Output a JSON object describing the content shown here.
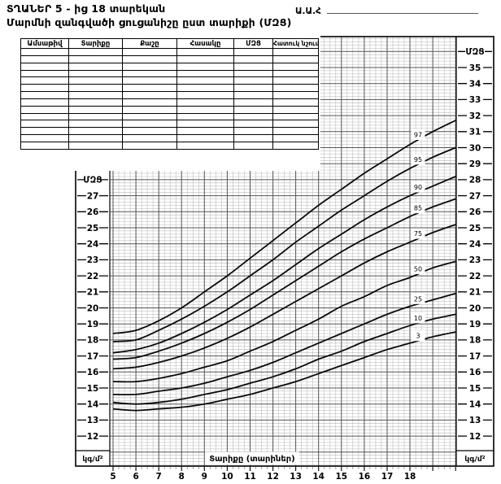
{
  "page": {
    "title_line1": "ՏՂԱՆԵՐ  5 - ից 18 տարեկան",
    "title_line2": "Մարմնի զանգվածի ցուցանիշը ըստ տարիքի (ՄԶՑ)",
    "name_field_label": "Ա.Ա.Հ"
  },
  "record_table": {
    "headers": [
      "Ամսաթիվ",
      "Տարիքը",
      "Քաշը",
      "Հասակը",
      "ՄԶՑ",
      "Հատուկ նշումներ"
    ],
    "empty_rows": 14
  },
  "chart_data": {
    "type": "line",
    "title": "",
    "xlabel": "Տարիքը (տարիներ)",
    "y_axis_title": "ՄԶՑ",
    "y_unit": "կգ/մ²",
    "x": [
      5,
      6,
      7,
      8,
      9,
      10,
      11,
      12,
      13,
      14,
      15,
      16,
      17,
      18,
      19,
      20
    ],
    "x_tick_labels": [
      5,
      6,
      7,
      8,
      9,
      10,
      11,
      12,
      13,
      14,
      15,
      16,
      17,
      18
    ],
    "xlim": [
      4.86,
      20.03
    ],
    "ylim": [
      10.1,
      36.9
    ],
    "y_ticks_right": [
      35,
      34,
      33,
      32,
      31,
      30,
      29,
      28,
      27,
      26,
      25,
      24,
      23,
      22,
      21,
      20,
      19,
      18,
      17,
      16,
      15,
      14,
      13,
      12
    ],
    "y_ticks_left": [
      27,
      26,
      25,
      24,
      23,
      22,
      21,
      20,
      19,
      18,
      17,
      16,
      15,
      14,
      13,
      12
    ],
    "grid": true,
    "legend": "percentile-labels-on-curves",
    "series": [
      {
        "name": "97",
        "values": [
          18.4,
          18.6,
          19.2,
          20.0,
          21.0,
          22.0,
          23.1,
          24.2,
          25.3,
          26.4,
          27.4,
          28.4,
          29.3,
          30.2,
          31.0,
          31.7
        ]
      },
      {
        "name": "95",
        "values": [
          17.9,
          18.0,
          18.6,
          19.3,
          20.1,
          21.0,
          22.0,
          23.0,
          24.1,
          25.1,
          26.1,
          27.0,
          27.9,
          28.7,
          29.4,
          30.0
        ]
      },
      {
        "name": "90",
        "values": [
          17.2,
          17.4,
          17.8,
          18.4,
          19.1,
          19.9,
          20.8,
          21.7,
          22.7,
          23.7,
          24.6,
          25.5,
          26.3,
          27.0,
          27.6,
          28.2
        ]
      },
      {
        "name": "85",
        "values": [
          16.8,
          16.9,
          17.3,
          17.8,
          18.4,
          19.1,
          19.9,
          20.8,
          21.7,
          22.6,
          23.5,
          24.3,
          25.0,
          25.7,
          26.3,
          26.8
        ]
      },
      {
        "name": "75",
        "values": [
          16.2,
          16.3,
          16.6,
          17.0,
          17.5,
          18.1,
          18.8,
          19.6,
          20.4,
          21.2,
          22.0,
          22.8,
          23.5,
          24.1,
          24.7,
          25.2
        ]
      },
      {
        "name": "50",
        "values": [
          15.4,
          15.4,
          15.6,
          15.9,
          16.3,
          16.7,
          17.3,
          17.9,
          18.6,
          19.3,
          20.1,
          20.7,
          21.4,
          21.9,
          22.5,
          22.9
        ]
      },
      {
        "name": "25",
        "values": [
          14.6,
          14.6,
          14.8,
          15.0,
          15.3,
          15.7,
          16.1,
          16.6,
          17.2,
          17.8,
          18.4,
          19.0,
          19.6,
          20.1,
          20.5,
          20.9
        ]
      },
      {
        "name": "10",
        "values": [
          14.1,
          14.0,
          14.1,
          14.3,
          14.6,
          14.9,
          15.3,
          15.7,
          16.2,
          16.8,
          17.3,
          17.9,
          18.4,
          18.9,
          19.3,
          19.6
        ]
      },
      {
        "name": "3",
        "values": [
          13.7,
          13.6,
          13.7,
          13.8,
          14.0,
          14.3,
          14.6,
          15.0,
          15.4,
          15.9,
          16.4,
          16.9,
          17.4,
          17.8,
          18.2,
          18.5
        ]
      }
    ],
    "colors": {
      "curve": "#0a0a0a",
      "grid_major": "#555555",
      "grid_minor": "#b8b8b8"
    }
  }
}
